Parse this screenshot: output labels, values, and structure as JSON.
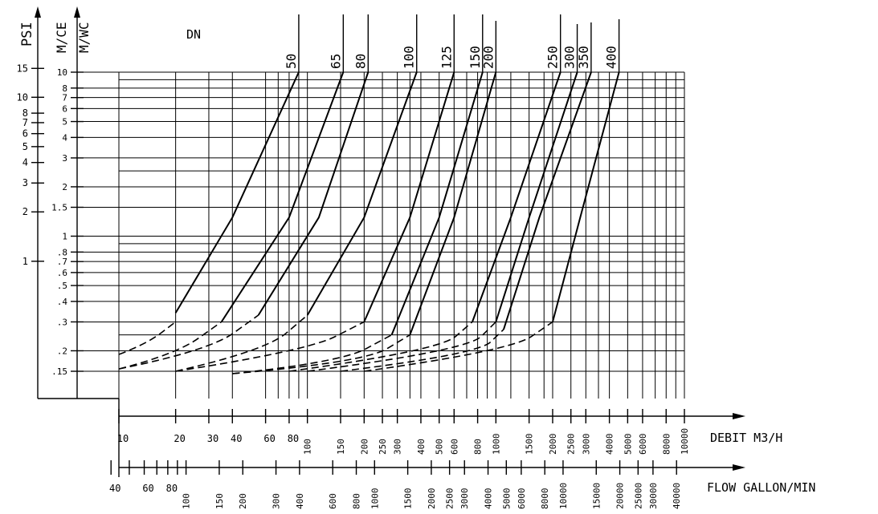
{
  "chart_data": {
    "type": "line",
    "x_scale": "log",
    "y_scale": "log",
    "grid": true,
    "legend": "none",
    "x_range": [
      10,
      10000
    ],
    "y_range": [
      0.15,
      10
    ],
    "axes": {
      "psi": {
        "label": "PSI",
        "ticks": [
          {
            "v": 15,
            "label": "15"
          },
          {
            "v": 10,
            "label": "10"
          },
          {
            "v": 8,
            "label": "8"
          },
          {
            "v": 7,
            "label": "7"
          },
          {
            "v": 6,
            "label": "6"
          },
          {
            "v": 5,
            "label": "5"
          },
          {
            "v": 4,
            "label": "4"
          },
          {
            "v": 3,
            "label": "3"
          },
          {
            "v": 2,
            "label": "2"
          },
          {
            "v": 1,
            "label": "1"
          }
        ]
      },
      "mce": {
        "labels": [
          "M/CE",
          "M/WC"
        ],
        "ticks": [
          {
            "v": 10,
            "label": "10"
          },
          {
            "v": 8,
            "label": "8"
          },
          {
            "v": 7,
            "label": "7"
          },
          {
            "v": 6,
            "label": "6"
          },
          {
            "v": 5,
            "label": "5"
          },
          {
            "v": 4,
            "label": "4"
          },
          {
            "v": 3,
            "label": "3"
          },
          {
            "v": 2,
            "label": "2"
          },
          {
            "v": 1.5,
            "label": "1.5"
          },
          {
            "v": 1,
            "label": "1"
          },
          {
            "v": 0.8,
            "label": ".8"
          },
          {
            "v": 0.7,
            "label": ".7"
          },
          {
            "v": 0.6,
            "label": ".6"
          },
          {
            "v": 0.5,
            "label": ".5"
          },
          {
            "v": 0.4,
            "label": ".4"
          },
          {
            "v": 0.3,
            "label": ".3"
          },
          {
            "v": 0.2,
            "label": ".2"
          },
          {
            "v": 0.15,
            "label": ".15"
          }
        ]
      },
      "debit": {
        "label": "DEBIT   M3/H",
        "ticks": [
          {
            "v": 10,
            "label": "10"
          },
          {
            "v": 20,
            "label": "20"
          },
          {
            "v": 30,
            "label": "30"
          },
          {
            "v": 40,
            "label": "40"
          },
          {
            "v": 60,
            "label": "60"
          },
          {
            "v": 80,
            "label": "80"
          },
          {
            "v": 100,
            "label": "100"
          },
          {
            "v": 150,
            "label": "150"
          },
          {
            "v": 200,
            "label": "200"
          },
          {
            "v": 250,
            "label": "250"
          },
          {
            "v": 300,
            "label": "300"
          },
          {
            "v": 400,
            "label": "400"
          },
          {
            "v": 500,
            "label": "500"
          },
          {
            "v": 600,
            "label": "600"
          },
          {
            "v": 800,
            "label": "800"
          },
          {
            "v": 1000,
            "label": "1000"
          },
          {
            "v": 1500,
            "label": "1500"
          },
          {
            "v": 2000,
            "label": "2000"
          },
          {
            "v": 2500,
            "label": "2500"
          },
          {
            "v": 3000,
            "label": "3000"
          },
          {
            "v": 4000,
            "label": "4000"
          },
          {
            "v": 5000,
            "label": "5000"
          },
          {
            "v": 6000,
            "label": "6000"
          },
          {
            "v": 8000,
            "label": "8000"
          },
          {
            "v": 10000,
            "label": "10000"
          }
        ]
      },
      "gallon": {
        "label": "FLOW GALLON/MIN",
        "ticks": [
          {
            "v": 40,
            "label": "40"
          },
          {
            "v": 60,
            "label": "60"
          },
          {
            "v": 80,
            "label": "80"
          },
          {
            "v": 100,
            "label": "100"
          },
          {
            "v": 150,
            "label": "150"
          },
          {
            "v": 200,
            "label": "200"
          },
          {
            "v": 300,
            "label": "300"
          },
          {
            "v": 400,
            "label": "400"
          },
          {
            "v": 600,
            "label": "600"
          },
          {
            "v": 800,
            "label": "800"
          },
          {
            "v": 1000,
            "label": "1000"
          },
          {
            "v": 1500,
            "label": "1500"
          },
          {
            "v": 2000,
            "label": "2000"
          },
          {
            "v": 2500,
            "label": "2500"
          },
          {
            "v": 3000,
            "label": "3000"
          },
          {
            "v": 4000,
            "label": "4000"
          },
          {
            "v": 5000,
            "label": "5000"
          },
          {
            "v": 6000,
            "label": "6000"
          },
          {
            "v": 8000,
            "label": "8000"
          },
          {
            "v": 10000,
            "label": "10000"
          },
          {
            "v": 15000,
            "label": "15000"
          },
          {
            "v": 20000,
            "label": "20000"
          },
          {
            "v": 25000,
            "label": "25000"
          },
          {
            "v": 30000,
            "label": "30000"
          },
          {
            "v": 40000,
            "label": "40000"
          }
        ]
      }
    },
    "dn_label": "DN",
    "series": [
      {
        "name": "50",
        "dashed": [
          [
            10,
            0.19
          ],
          [
            14,
            0.22
          ],
          [
            20,
            0.3
          ]
        ],
        "solid": [
          [
            20,
            0.34
          ],
          [
            40,
            1.3
          ],
          [
            90,
            10
          ]
        ]
      },
      {
        "name": "65",
        "dashed": [
          [
            10,
            0.155
          ],
          [
            20,
            0.19
          ],
          [
            35,
            0.3
          ]
        ],
        "solid": [
          [
            35,
            0.3
          ],
          [
            80,
            1.3
          ],
          [
            155,
            10
          ]
        ]
      },
      {
        "name": "80",
        "dashed": [
          [
            10,
            0.155
          ],
          [
            30,
            0.2
          ],
          [
            55,
            0.33
          ]
        ],
        "solid": [
          [
            55,
            0.33
          ],
          [
            115,
            1.3
          ],
          [
            210,
            10
          ]
        ]
      },
      {
        "name": "100",
        "dashed": [
          [
            20,
            0.15
          ],
          [
            60,
            0.2
          ],
          [
            100,
            0.33
          ]
        ],
        "solid": [
          [
            100,
            0.33
          ],
          [
            200,
            1.3
          ],
          [
            380,
            10
          ]
        ]
      },
      {
        "name": "125",
        "dashed": [
          [
            20,
            0.15
          ],
          [
            100,
            0.2
          ],
          [
            200,
            0.3
          ]
        ],
        "solid": [
          [
            200,
            0.3
          ],
          [
            350,
            1.3
          ],
          [
            600,
            10
          ]
        ]
      },
      {
        "name": "150",
        "dashed": [
          [
            40,
            0.145
          ],
          [
            150,
            0.17
          ],
          [
            280,
            0.25
          ]
        ],
        "solid": [
          [
            280,
            0.25
          ],
          [
            500,
            1.3
          ],
          [
            850,
            10
          ]
        ]
      },
      {
        "name": "200",
        "dashed": [
          [
            40,
            0.145
          ],
          [
            200,
            0.17
          ],
          [
            350,
            0.25
          ]
        ],
        "solid": [
          [
            350,
            0.25
          ],
          [
            600,
            1.3
          ],
          [
            1000,
            10
          ]
        ]
      },
      {
        "name": "250",
        "dashed": [
          [
            80,
            0.15
          ],
          [
            500,
            0.2
          ],
          [
            750,
            0.3
          ]
        ],
        "solid": [
          [
            750,
            0.3
          ],
          [
            1200,
            1.3
          ],
          [
            2200,
            10
          ]
        ]
      },
      {
        "name": "300",
        "dashed": [
          [
            100,
            0.15
          ],
          [
            700,
            0.2
          ],
          [
            1000,
            0.3
          ]
        ],
        "solid": [
          [
            1000,
            0.3
          ],
          [
            1500,
            1.3
          ],
          [
            2700,
            10
          ]
        ]
      },
      {
        "name": "350",
        "dashed": [
          [
            150,
            0.15
          ],
          [
            800,
            0.19
          ],
          [
            1100,
            0.27
          ]
        ],
        "solid": [
          [
            1100,
            0.27
          ],
          [
            1700,
            1.3
          ],
          [
            3200,
            10
          ]
        ]
      },
      {
        "name": "400",
        "dashed": [
          [
            200,
            0.15
          ],
          [
            1200,
            0.2
          ],
          [
            2000,
            0.3
          ]
        ],
        "solid": [
          [
            2000,
            0.3
          ],
          [
            2800,
            1.3
          ],
          [
            4500,
            10
          ]
        ]
      }
    ]
  }
}
